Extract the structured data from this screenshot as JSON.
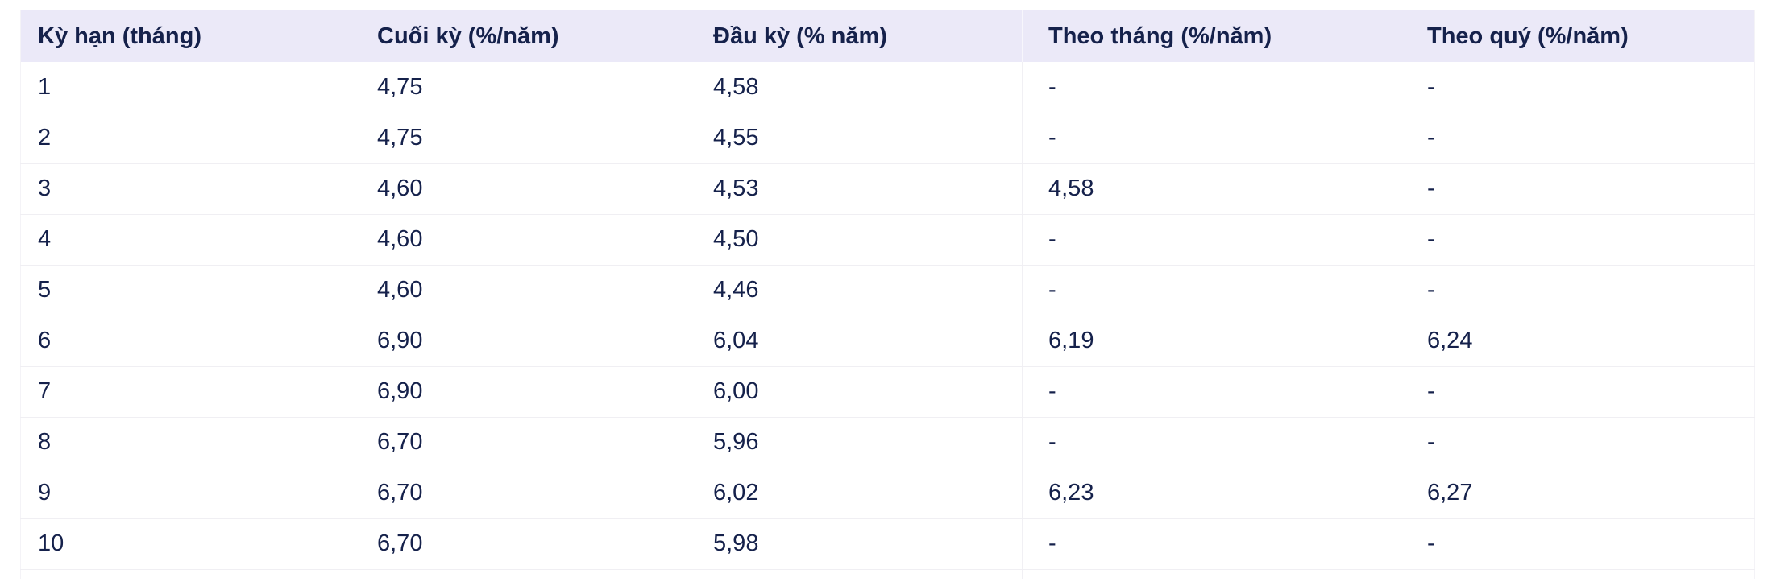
{
  "table": {
    "name": "interest-rate-table",
    "columns": [
      {
        "key": "term_months",
        "label": "Kỳ hạn (tháng)"
      },
      {
        "key": "end_of_term",
        "label": "Cuối kỳ (%/năm)"
      },
      {
        "key": "start_of_term",
        "label": "Đầu kỳ (% năm)"
      },
      {
        "key": "monthly",
        "label": "Theo tháng (%/năm)"
      },
      {
        "key": "quarterly",
        "label": "Theo quý (%/năm)"
      }
    ],
    "rows": [
      [
        "1",
        "4,75",
        "4,58",
        "-",
        "-"
      ],
      [
        "2",
        "4,75",
        "4,55",
        "-",
        "-"
      ],
      [
        "3",
        "4,60",
        "4,53",
        "4,58",
        "-"
      ],
      [
        "4",
        "4,60",
        "4,50",
        "-",
        "-"
      ],
      [
        "5",
        "4,60",
        "4,46",
        "-",
        "-"
      ],
      [
        "6",
        "6,90",
        "6,04",
        "6,19",
        "6,24"
      ],
      [
        "7",
        "6,90",
        "6,00",
        "-",
        "-"
      ],
      [
        "8",
        "6,70",
        "5,96",
        "-",
        "-"
      ],
      [
        "9",
        "6,70",
        "6,02",
        "6,23",
        "6,27"
      ],
      [
        "10",
        "6,70",
        "5,98",
        "-",
        "-"
      ]
    ]
  },
  "colors": {
    "header_bg": "#EBE9F8",
    "text": "#15214B",
    "row_border": "#F0EFF3",
    "column_border": "#F1F0F4",
    "page_bg": "#FFFFFF"
  }
}
